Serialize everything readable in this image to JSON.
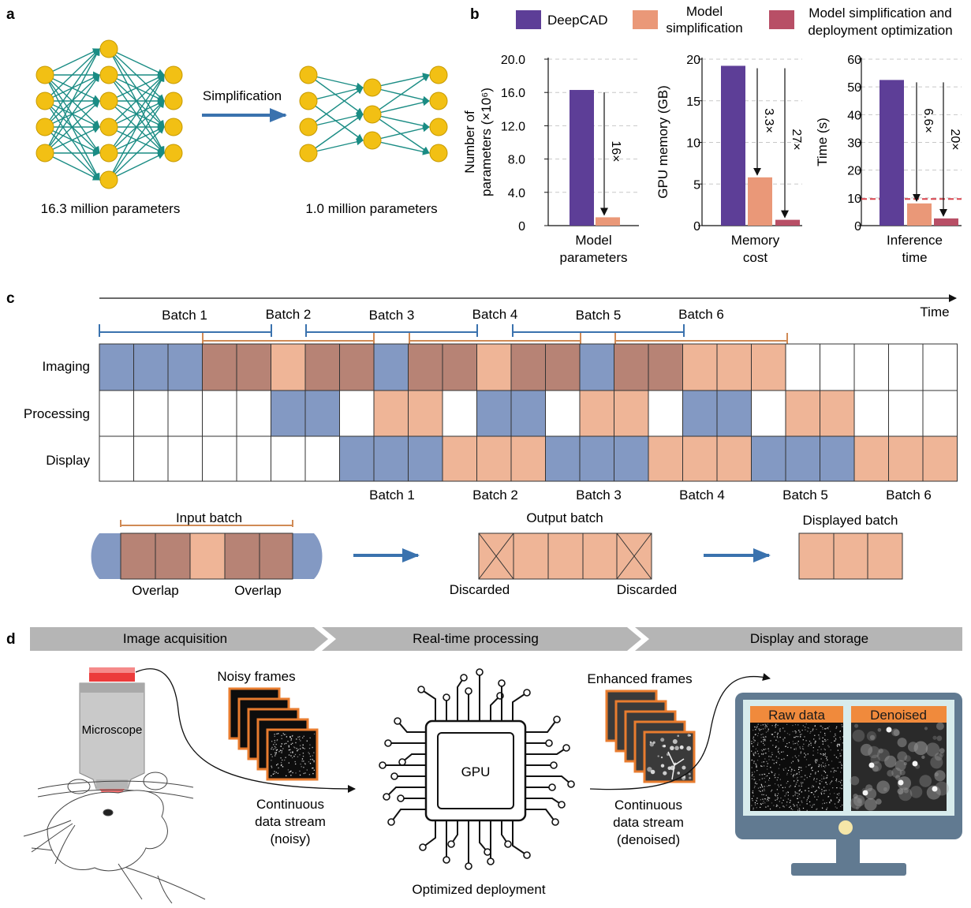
{
  "panels": {
    "a": "a",
    "b": "b",
    "c": "c",
    "d": "d"
  },
  "panel_a": {
    "left_caption": "16.3 million parameters",
    "right_caption": "1.0 million parameters",
    "arrow_label": "Simplification"
  },
  "legend": [
    {
      "label_lines": [
        "DeepCAD"
      ],
      "color": "#5d3e97"
    },
    {
      "label_lines": [
        "Model",
        "simplification"
      ],
      "color": "#ea9878"
    },
    {
      "label_lines": [
        "Model simplification and",
        "deployment optimization"
      ],
      "color": "#b84f66"
    }
  ],
  "chart_data": [
    {
      "type": "bar",
      "categories": [
        "DeepCAD",
        "Model simplification"
      ],
      "values": [
        16.3,
        1.0
      ],
      "ylabel_lines": [
        "Number of",
        "parameters (×10⁶)"
      ],
      "ticks": [
        "0",
        "4.0",
        "8.0",
        "12.0",
        "16.0",
        "20.0"
      ],
      "ylim": [
        0,
        20
      ],
      "xlabel_lines": [
        "Model",
        "parameters"
      ],
      "annotations": [
        {
          "text": "16×",
          "from": "DeepCAD",
          "to": "Model simplification"
        }
      ]
    },
    {
      "type": "bar",
      "categories": [
        "DeepCAD",
        "Model simplification",
        "Model simplification and deployment optimization"
      ],
      "values": [
        19.2,
        5.8,
        0.7
      ],
      "ylabel_lines": [
        "GPU memory (GB)"
      ],
      "ticks": [
        "0",
        "5",
        "10",
        "15",
        "20"
      ],
      "ylim": [
        0,
        20
      ],
      "xlabel_lines": [
        "Memory",
        "cost"
      ],
      "annotations": [
        {
          "text": "3.3×",
          "from": "DeepCAD",
          "to": "Model simplification"
        },
        {
          "text": "27×",
          "from": "DeepCAD",
          "to": "Model simplification and deployment optimization"
        }
      ]
    },
    {
      "type": "bar",
      "categories": [
        "DeepCAD",
        "Model simplification",
        "Model simplification and deployment optimization"
      ],
      "values": [
        52.5,
        8.0,
        2.6
      ],
      "ylabel_lines": [
        "Time (s)"
      ],
      "ticks": [
        "0",
        "10",
        "20",
        "30",
        "40",
        "50",
        "60"
      ],
      "ylim": [
        0,
        60
      ],
      "xlabel_lines": [
        "Inference",
        "time"
      ],
      "reference_line": 9.6,
      "annotations": [
        {
          "text": "6.6×",
          "from": "DeepCAD",
          "to": "Model simplification"
        },
        {
          "text": "20×",
          "from": "DeepCAD",
          "to": "Model simplification and deployment optimization"
        }
      ]
    }
  ],
  "panel_c": {
    "time_label": "Time",
    "row_labels": [
      "Imaging",
      "Processing",
      "Display"
    ],
    "batch_top": [
      "Batch 1",
      "Batch 2",
      "Batch 3",
      "Batch 4",
      "Batch 5",
      "Batch 6"
    ],
    "batch_bottom": [
      "Batch 1",
      "Batch 2",
      "Batch 3",
      "Batch 4",
      "Batch 5",
      "Batch 6"
    ],
    "imaging": [
      "B",
      "B",
      "B",
      "R",
      "R",
      "O",
      "R",
      "R",
      "B",
      "R",
      "R",
      "O",
      "R",
      "R",
      "B",
      "R",
      "R",
      "O",
      "O",
      "O",
      "W",
      "W",
      "W",
      "W",
      "W"
    ],
    "processing": [
      "W",
      "W",
      "W",
      "W",
      "W",
      "B",
      "B",
      "W",
      "O",
      "O",
      "W",
      "B",
      "B",
      "W",
      "O",
      "O",
      "W",
      "B",
      "B",
      "W",
      "O",
      "O",
      "W",
      "W",
      "W"
    ],
    "display": [
      "W",
      "W",
      "W",
      "W",
      "W",
      "W",
      "W",
      "B",
      "B",
      "B",
      "O",
      "O",
      "O",
      "B",
      "B",
      "B",
      "O",
      "O",
      "O",
      "B",
      "B",
      "B",
      "O",
      "O",
      "O"
    ],
    "colors": {
      "B": "#8399c3",
      "R": "#b78375",
      "O": "#efb597",
      "W": "#ffffff"
    },
    "input_batch": "Input batch",
    "overlap": "Overlap",
    "output_batch": "Output batch",
    "discarded": "Discarded",
    "displayed_batch": "Displayed batch"
  },
  "panel_d": {
    "steps": [
      "Image acquisition",
      "Real-time processing",
      "Display and storage"
    ],
    "microscope": "Microscope",
    "noisy_frames": "Noisy frames",
    "stream_noisy": [
      "Continuous",
      "data stream",
      "(noisy)"
    ],
    "gpu": "GPU",
    "optimized": "Optimized deployment",
    "enhanced_frames": "Enhanced frames",
    "stream_denoised": [
      "Continuous",
      "data stream",
      "(denoised)"
    ],
    "raw": "Raw data",
    "denoised": "Denoised"
  }
}
